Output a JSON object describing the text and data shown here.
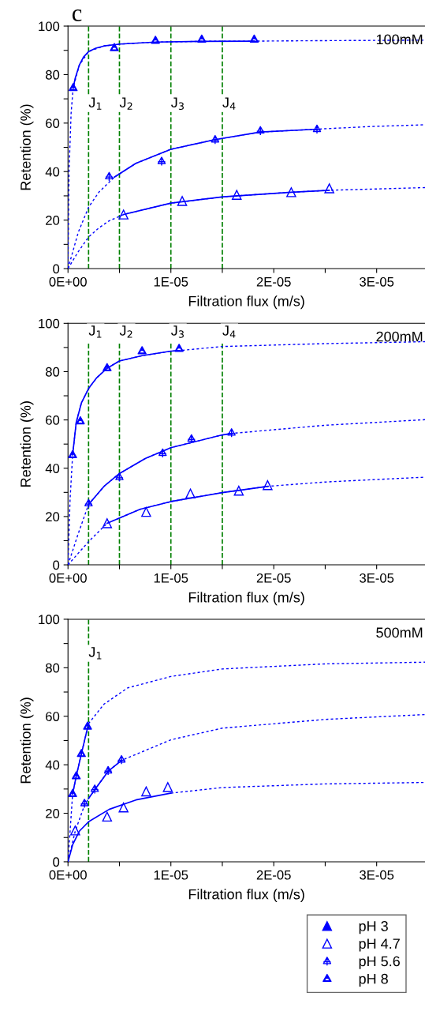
{
  "chart_data": [
    {
      "type": "scatter",
      "title": "c",
      "xlabel": "Filtration flux (m/s)",
      "ylabel": "Retention (%)",
      "annotations": [
        "100mM"
      ],
      "xlim": [
        0,
        3.47e-05
      ],
      "ylim": [
        0,
        100
      ],
      "xticks": [
        {
          "value": 0,
          "label": "0E+00"
        },
        {
          "value": 5e-06,
          "label": null
        },
        {
          "value": 1e-05,
          "label": "1E-05"
        },
        {
          "value": 1.5e-05,
          "label": null
        },
        {
          "value": 2e-05,
          "label": "2E-05"
        },
        {
          "value": 2.5e-05,
          "label": null
        },
        {
          "value": 3e-05,
          "label": "3E-05"
        }
      ],
      "yticks": [
        0,
        {
          "value": 10,
          "label": null
        },
        20,
        {
          "value": 30,
          "label": null
        },
        40,
        {
          "value": 50,
          "label": null
        },
        60,
        {
          "value": 70,
          "label": null
        },
        80,
        {
          "value": 90,
          "label": null
        },
        100
      ],
      "ref_lines": [
        {
          "axis": "x",
          "value": 2e-06,
          "label": "J$_{1}$",
          "color": "#008000",
          "line_style": "dashed"
        },
        {
          "axis": "x",
          "value": 5e-06,
          "label": "J$_{2}$",
          "color": "#008000",
          "line_style": "dashed"
        },
        {
          "axis": "x",
          "value": 1e-05,
          "label": "J$_{3}$",
          "color": "#008000",
          "line_style": "dashed"
        },
        {
          "axis": "x",
          "value": 1.5e-05,
          "label": "J$_{4}$",
          "color": "#008000",
          "line_style": "dashed"
        }
      ],
      "series": [
        {
          "color": "#0000ff",
          "marker": "triangle",
          "x": [
            5.4e-06,
            1.11e-05,
            1.64e-05,
            2.17e-05,
            2.54e-05
          ],
          "values": [
            22.3,
            27.9,
            30.4,
            31.5,
            33.1
          ]
        },
        {
          "color": "#0000ff",
          "marker": "cross",
          "x": [
            4e-06,
            9.1e-06,
            1.43e-05,
            1.87e-05,
            2.42e-05
          ],
          "values": [
            38,
            44.3,
            53.2,
            56.9,
            57.5
          ]
        },
        {
          "color": "#0000ff",
          "marker": "triangle",
          "x": [
            5e-07,
            4.5e-06,
            8.5e-06,
            1.3e-05,
            1.81e-05
          ],
          "values": [
            74.5,
            91,
            94,
            94.5,
            94.5
          ]
        },
        {
          "type": "line",
          "color": "#0000ff",
          "line_style": "dotted",
          "x": [
            0,
            1e-07,
            3e-07,
            5e-07,
            1.1e-06,
            2e-06,
            3.5e-06,
            5.1e-06,
            8.5e-06,
            1.29e-05,
            1.81e-05,
            2.5e-05,
            3.47e-05
          ],
          "values": [
            0,
            40,
            64,
            74.5,
            83.9,
            89.5,
            91.8,
            92.6,
            93.4,
            93.7,
            93.8,
            94,
            94.2
          ]
        },
        {
          "type": "line",
          "color": "#0000ff",
          "line_style": "solid",
          "x": [
            5e-07,
            7e-07,
            1.1e-06,
            1.5e-06,
            2e-06,
            2.7e-06,
            3.5e-06,
            5.1e-06,
            8.5e-06,
            1.29e-05,
            1.81e-05
          ],
          "values": [
            74.5,
            78.5,
            83.9,
            87.2,
            89.5,
            90.9,
            91.8,
            92.6,
            93.4,
            93.7,
            93.8
          ]
        },
        {
          "type": "line",
          "color": "#0000ff",
          "line_style": "dotted",
          "x": [
            0,
            1e-06,
            2e-06,
            3e-06,
            4.5e-06,
            6.6e-06,
            1e-05,
            1.43e-05,
            1.87e-05,
            2.42e-05,
            2.95e-05,
            3.47e-05
          ],
          "values": [
            0,
            15,
            25.3,
            31.5,
            37.7,
            43.4,
            49.2,
            53.2,
            56.3,
            57.5,
            58.6,
            59.3
          ]
        },
        {
          "type": "line",
          "color": "#0000ff",
          "line_style": "solid",
          "x": [
            4.5e-06,
            6.6e-06,
            1e-05,
            1.43e-05,
            1.87e-05,
            2.42e-05
          ],
          "values": [
            37.7,
            43.4,
            49.2,
            53.2,
            56.3,
            57.5
          ]
        },
        {
          "type": "line",
          "color": "#0000ff",
          "line_style": "dotted",
          "x": [
            0,
            1e-06,
            2e-06,
            3e-06,
            4e-06,
            5.4e-06,
            1e-05,
            1.51e-05,
            2.17e-05,
            2.54e-05,
            3.47e-05
          ],
          "values": [
            0,
            7,
            13,
            16.8,
            19.7,
            22.3,
            27,
            29.6,
            31.5,
            32.3,
            33.4
          ]
        },
        {
          "type": "line",
          "color": "#0000ff",
          "line_style": "solid",
          "x": [
            5.4e-06,
            1e-05,
            1.51e-05,
            2.17e-05,
            2.54e-05
          ],
          "values": [
            22.3,
            27,
            29.6,
            31.5,
            32.3
          ]
        }
      ]
    },
    {
      "type": "scatter",
      "xlabel": "Filtration flux (m/s)",
      "ylabel": "Retention (%)",
      "annotations": [
        "200mM"
      ],
      "xlim": [
        0,
        3.47e-05
      ],
      "ylim": [
        0,
        100
      ],
      "xticks": [
        {
          "value": 0,
          "label": "0E+00"
        },
        {
          "value": 5e-06,
          "label": null
        },
        {
          "value": 1e-05,
          "label": "1E-05"
        },
        {
          "value": 1.5e-05,
          "label": null
        },
        {
          "value": 2e-05,
          "label": "2E-05"
        },
        {
          "value": 2.5e-05,
          "label": null
        },
        {
          "value": 3e-05,
          "label": "3E-05"
        }
      ],
      "yticks": [
        0,
        {
          "value": 10,
          "label": null
        },
        20,
        {
          "value": 30,
          "label": null
        },
        40,
        {
          "value": 50,
          "label": null
        },
        60,
        {
          "value": 70,
          "label": null
        },
        80,
        {
          "value": 90,
          "label": null
        },
        100
      ],
      "ref_lines": [
        {
          "axis": "x",
          "value": 2e-06,
          "label": "J$_{1}$",
          "color": "#008000",
          "line_style": "dashed"
        },
        {
          "axis": "x",
          "value": 5e-06,
          "label": "J$_{2}$",
          "color": "#008000",
          "line_style": "dashed"
        },
        {
          "axis": "x",
          "value": 1e-05,
          "label": "J$_{3}$",
          "color": "#008000",
          "line_style": "dashed"
        },
        {
          "axis": "x",
          "value": 1.5e-05,
          "label": "J$_{4}$",
          "color": "#008000",
          "line_style": "dashed"
        }
      ],
      "series": [
        {
          "color": "#0000ff",
          "marker": "triangle",
          "x": [
            3.8e-06,
            7.6e-06,
            1.19e-05,
            1.66e-05,
            1.94e-05
          ],
          "values": [
            17.2,
            21.9,
            29.5,
            30.7,
            33
          ]
        },
        {
          "color": "#0000ff",
          "marker": "cross",
          "x": [
            2e-06,
            5e-06,
            9.2e-06,
            1.2e-05,
            1.59e-05
          ],
          "values": [
            25.4,
            36.3,
            46.3,
            52.2,
            54.7
          ]
        },
        {
          "color": "#0000ff",
          "marker": "triangle",
          "x": [
            4.5e-07,
            1.2e-06,
            3.8e-06,
            7.2e-06,
            1.08e-05
          ],
          "values": [
            45.5,
            59.5,
            81.5,
            88.5,
            89.5
          ]
        },
        {
          "type": "line",
          "color": "#0000ff",
          "line_style": "dotted",
          "x": [
            0,
            2e-07,
            4.5e-07,
            8e-07,
            1.3e-06,
            2e-06,
            2.8e-06,
            3.8e-06,
            5e-06,
            7.2e-06,
            1e-05,
            1.08e-05,
            1.5e-05,
            2.5e-05,
            3.47e-05
          ],
          "values": [
            0,
            27,
            45.5,
            59,
            67,
            73,
            77.5,
            81.4,
            84.4,
            86.6,
            88.5,
            88.7,
            90.4,
            91.6,
            92.4
          ]
        },
        {
          "type": "line",
          "color": "#0000ff",
          "line_style": "solid",
          "x": [
            4.5e-07,
            8e-07,
            1.3e-06,
            2e-06,
            2.8e-06,
            3.8e-06,
            5e-06,
            7.2e-06,
            1e-05,
            1.08e-05
          ],
          "values": [
            45.5,
            59,
            67,
            73,
            77.5,
            81.4,
            84.4,
            86.6,
            88.5,
            88.7
          ]
        },
        {
          "type": "line",
          "color": "#0000ff",
          "line_style": "dotted",
          "x": [
            0,
            1e-06,
            2e-06,
            3.5e-06,
            5e-06,
            7.5e-06,
            1e-05,
            1.5e-05,
            1.59e-05,
            2.5e-05,
            3.47e-05
          ],
          "values": [
            0,
            13,
            25,
            32.5,
            37.8,
            44,
            48.5,
            53.8,
            54.4,
            57.8,
            60.1
          ]
        },
        {
          "type": "line",
          "color": "#0000ff",
          "line_style": "solid",
          "x": [
            2e-06,
            3.5e-06,
            5e-06,
            7.5e-06,
            1e-05,
            1.5e-05,
            1.59e-05
          ],
          "values": [
            25,
            32.5,
            37.8,
            44,
            48.5,
            53.8,
            54.4
          ]
        },
        {
          "type": "line",
          "color": "#0000ff",
          "line_style": "dotted",
          "x": [
            0,
            2e-06,
            3.8e-06,
            7e-06,
            1e-05,
            1.5e-05,
            1.94e-05,
            2.5e-05,
            3.47e-05
          ],
          "values": [
            0,
            9.6,
            17.2,
            23,
            26.2,
            29.9,
            32.5,
            34.3,
            36.3
          ]
        },
        {
          "type": "line",
          "color": "#0000ff",
          "line_style": "solid",
          "x": [
            3.8e-06,
            7e-06,
            1e-05,
            1.5e-05,
            1.94e-05
          ],
          "values": [
            17.2,
            23,
            26.2,
            29.9,
            32.5
          ]
        }
      ]
    },
    {
      "type": "scatter",
      "xlabel": "Filtration flux (m/s)",
      "ylabel": "Retention (%)",
      "annotations": [
        "500mM"
      ],
      "xlim": [
        0,
        3.47e-05
      ],
      "ylim": [
        0,
        100
      ],
      "xticks": [
        {
          "value": 0,
          "label": "0E+00"
        },
        {
          "value": 5e-06,
          "label": null
        },
        {
          "value": 1e-05,
          "label": "1E-05"
        },
        {
          "value": 1.5e-05,
          "label": null
        },
        {
          "value": 2e-05,
          "label": "2E-05"
        },
        {
          "value": 2.5e-05,
          "label": null
        },
        {
          "value": 3e-05,
          "label": "3E-05"
        }
      ],
      "yticks": [
        0,
        {
          "value": 10,
          "label": null
        },
        20,
        {
          "value": 30,
          "label": null
        },
        40,
        {
          "value": 50,
          "label": null
        },
        60,
        {
          "value": 70,
          "label": null
        },
        80,
        {
          "value": 90,
          "label": null
        },
        100
      ],
      "legend": "bottom right",
      "ref_lines": [
        {
          "axis": "x",
          "value": 2e-06,
          "label": "J$_{1}$",
          "color": "#008000",
          "line_style": "dashed"
        }
      ],
      "series": [
        {
          "name": "pH 3",
          "color": "#0000ff",
          "marker": "triangle",
          "x": [
            null
          ],
          "values": [
            null
          ]
        },
        {
          "name": "pH 4.7",
          "color": "#0000ff",
          "marker": "triangle",
          "x": [
            7e-07,
            3.8e-06,
            5.4e-06,
            7.6e-06,
            9.7e-06
          ],
          "values": [
            12.9,
            18.6,
            22.4,
            29,
            30.8
          ]
        },
        {
          "name": "pH 5.6",
          "color": "#0000ff",
          "marker": "cross",
          "x": [
            1.6e-06,
            2.6e-06,
            3.9e-06,
            5.2e-06
          ],
          "values": [
            24.1,
            30,
            37.6,
            42.1
          ]
        },
        {
          "name": "pH 8",
          "color": "#0000ff",
          "marker": "triangle",
          "x": [
            4.5e-07,
            8e-07,
            1.3e-06,
            1.9e-06
          ],
          "values": [
            28,
            35.3,
            44.5,
            55.8
          ]
        },
        {
          "type": "line",
          "color": "#0000ff",
          "line_style": "dotted",
          "x": [
            0,
            4.5e-07,
            8e-07,
            1.3e-06,
            2e-06,
            3.5e-06,
            5.8e-06,
            1e-05,
            1.5e-05,
            2.5e-05,
            3.47e-05
          ],
          "values": [
            0,
            28,
            35.3,
            44.5,
            57,
            65,
            71.7,
            76.4,
            79.5,
            81.6,
            82.3
          ]
        },
        {
          "type": "line",
          "color": "#0000ff",
          "line_style": "solid",
          "x": [
            4.5e-07,
            8e-07,
            1.3e-06,
            2e-06
          ],
          "values": [
            28,
            35.3,
            44.5,
            57
          ]
        },
        {
          "type": "line",
          "color": "#0000ff",
          "line_style": "dotted",
          "x": [
            0,
            7e-07,
            1.6e-06,
            2e-06,
            2.6e-06,
            3.9e-06,
            5.2e-06,
            1e-05,
            1.5e-05,
            2.5e-05,
            3.47e-05
          ],
          "values": [
            0,
            12.6,
            23.3,
            26.1,
            29.7,
            37.3,
            41.8,
            50.3,
            55.1,
            58.7,
            60.7
          ]
        },
        {
          "type": "line",
          "color": "#0000ff",
          "line_style": "solid",
          "x": [
            2e-06,
            2.6e-06,
            3.9e-06,
            5.2e-06
          ],
          "values": [
            26.1,
            29.7,
            37.3,
            41.8
          ]
        },
        {
          "type": "line",
          "color": "#0000ff",
          "line_style": "solid",
          "x": [
            0,
            4.5e-07,
            1.1e-06,
            2e-06,
            4e-06,
            6.6e-06,
            1e-05
          ],
          "values": [
            0,
            7,
            12.6,
            16.5,
            21.6,
            25.5,
            28.3
          ]
        },
        {
          "type": "line",
          "color": "#0000ff",
          "line_style": "dotted",
          "x": [
            1e-05,
            1.5e-05,
            2.5e-05,
            3.47e-05
          ],
          "values": [
            28.3,
            30.6,
            32.1,
            32.7
          ]
        }
      ]
    }
  ]
}
